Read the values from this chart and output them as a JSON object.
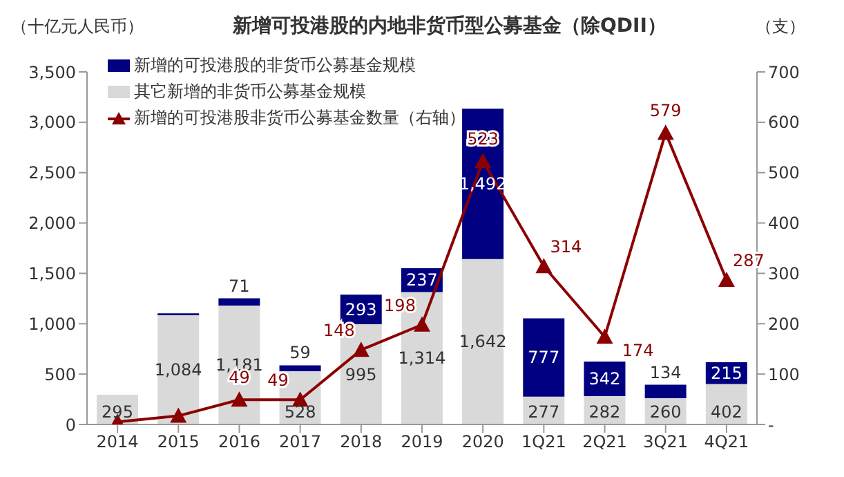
{
  "chart_data": {
    "type": "bar",
    "title": "新增可投港股的内地非货币型公募基金（除QDII）",
    "ylabel": "（十亿元人民币）",
    "y2label": "（支）",
    "categories": [
      "2014",
      "2015",
      "2016",
      "2017",
      "2018",
      "2019",
      "2020",
      "1Q21",
      "2Q21",
      "3Q21",
      "4Q21"
    ],
    "stacked": true,
    "legend": "top left",
    "series": [
      {
        "name": "其它新增的非货币公募基金规模",
        "color": "#d9d9d9",
        "values": [
          295,
          1084,
          1181,
          528,
          995,
          1314,
          1642,
          277,
          282,
          260,
          402
        ],
        "value_labels": [
          "295",
          "1,084",
          "1,181",
          "528",
          "995",
          "1,314",
          "1,642",
          "277",
          "282",
          "260",
          "402"
        ]
      },
      {
        "name": "新增的可投港股的非货币公募基金规模",
        "color": "#000080",
        "values": [
          null,
          20,
          71,
          59,
          293,
          237,
          1492,
          777,
          342,
          134,
          215
        ],
        "value_labels": [
          null,
          null,
          "71",
          "59",
          "293",
          "237",
          "1,492",
          "777",
          "342",
          "134",
          "215"
        ]
      },
      {
        "name": "新增的可投港股非货币公募基金数量（右轴）",
        "type": "line",
        "axis": "y2",
        "color": "#8b0000",
        "marker": "triangle",
        "values": [
          5,
          17,
          49,
          49,
          148,
          198,
          523,
          314,
          174,
          579,
          287
        ],
        "value_labels": [
          null,
          null,
          "49",
          "49",
          "148",
          "198",
          "523",
          "314",
          "174",
          "579",
          "287"
        ]
      }
    ],
    "ylim": [
      0,
      3500
    ],
    "yticks": [
      0,
      500,
      {
        "value": 1000,
        "label": "1,000"
      },
      {
        "value": 1500,
        "label": "1,500"
      },
      {
        "value": 2000,
        "label": "2,000"
      },
      {
        "value": 2500,
        "label": "2,500"
      },
      {
        "value": 3000,
        "label": "3,000"
      },
      {
        "value": 3500,
        "label": "3,500"
      }
    ],
    "y2lim": [
      0,
      700
    ],
    "y2ticks": [
      {
        "value": 0,
        "label": "-"
      },
      100,
      200,
      300,
      400,
      500,
      600,
      700
    ],
    "grid": false
  }
}
